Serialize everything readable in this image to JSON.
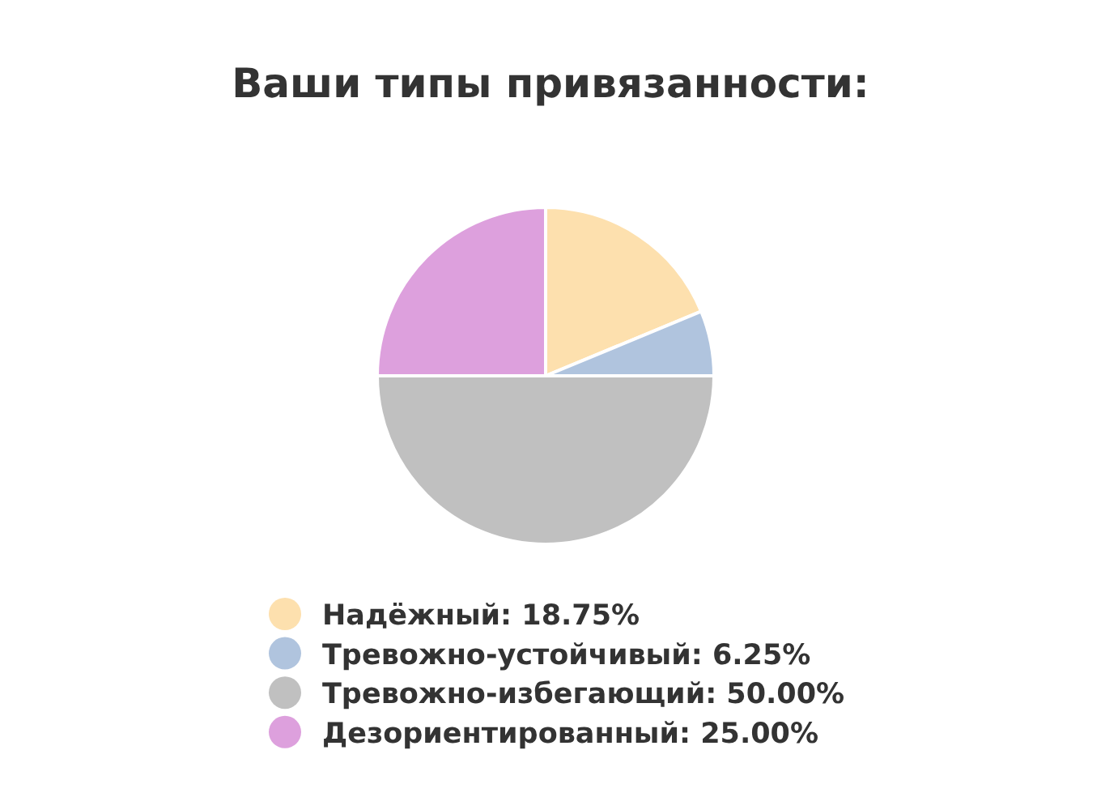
{
  "chart_data": {
    "type": "pie",
    "title": "Ваши типы привязанности:",
    "categories": [
      "Надёжный",
      "Тревожно-устойчивый",
      "Тревожно-избегающий",
      "Дезориентированный"
    ],
    "values": [
      18.75,
      6.25,
      50.0,
      25.0
    ],
    "value_labels": [
      "18.75%",
      "6.25%",
      "50.00%",
      "25.00%"
    ],
    "colors": [
      "#fde0ae",
      "#b0c4de",
      "#c0c0c0",
      "#dda0dd"
    ],
    "legend": "bottom"
  }
}
